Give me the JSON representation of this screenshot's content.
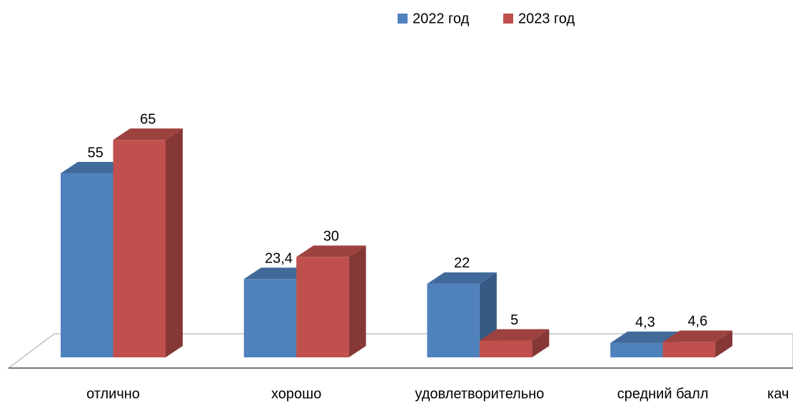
{
  "chart_data": {
    "type": "bar3d",
    "categories": [
      "отлично",
      "хорошо",
      "удовлетворительно",
      "средний балл",
      "кач"
    ],
    "series": [
      {
        "name": "2022 год",
        "color": "#4f81bd",
        "values": [
          55,
          23.4,
          22,
          4.3,
          null
        ],
        "value_labels": [
          "55",
          "23,4",
          "22",
          "4,3",
          null
        ]
      },
      {
        "name": "2023 год",
        "color": "#c0504d",
        "values": [
          65,
          30,
          5,
          4.6,
          null
        ],
        "value_labels": [
          "65",
          "30",
          "5",
          "4,6",
          null
        ]
      }
    ],
    "legend": "top"
  }
}
